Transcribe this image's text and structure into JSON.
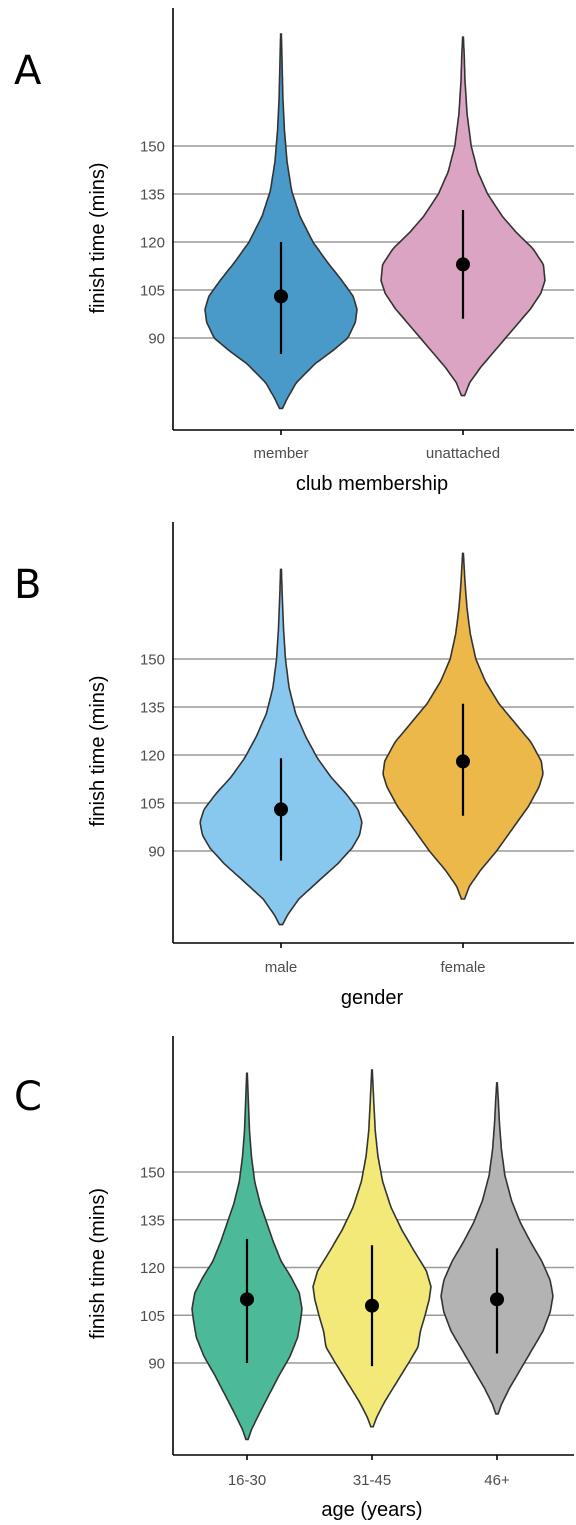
{
  "chart_data": [
    {
      "panel": "A",
      "type": "violin",
      "xlabel": "club membership",
      "ylabel": "finish time (mins)",
      "yticks": [
        90,
        105,
        120,
        135,
        150
      ],
      "ylim": [
        62,
        190
      ],
      "grid": "horizontal",
      "categories": [
        "member",
        "unattached"
      ],
      "colors": [
        "#4a9ac9",
        "#dba4c3"
      ],
      "means": [
        103,
        113
      ],
      "error_bars": [
        [
          85,
          120
        ],
        [
          96,
          130
        ]
      ],
      "ranges": [
        [
          68,
          185
        ],
        [
          72,
          184
        ]
      ],
      "density_widths": [
        [
          [
            68,
            0.02
          ],
          [
            71,
            0.08
          ],
          [
            76,
            0.2
          ],
          [
            82,
            0.45
          ],
          [
            86,
            0.68
          ],
          [
            90,
            0.88
          ],
          [
            95,
            0.98
          ],
          [
            99,
            1
          ],
          [
            103,
            0.95
          ],
          [
            108,
            0.8
          ],
          [
            114,
            0.6
          ],
          [
            120,
            0.42
          ],
          [
            128,
            0.25
          ],
          [
            136,
            0.14
          ],
          [
            145,
            0.08
          ],
          [
            155,
            0.045
          ],
          [
            165,
            0.025
          ],
          [
            175,
            0.015
          ],
          [
            185,
            0.005
          ]
        ],
        [
          [
            72,
            0.02
          ],
          [
            76,
            0.08
          ],
          [
            81,
            0.22
          ],
          [
            87,
            0.42
          ],
          [
            93,
            0.62
          ],
          [
            99,
            0.82
          ],
          [
            104,
            0.95
          ],
          [
            108,
            1
          ],
          [
            113,
            0.98
          ],
          [
            118,
            0.85
          ],
          [
            123,
            0.65
          ],
          [
            128,
            0.48
          ],
          [
            135,
            0.3
          ],
          [
            142,
            0.18
          ],
          [
            150,
            0.1
          ],
          [
            160,
            0.05
          ],
          [
            170,
            0.025
          ],
          [
            178,
            0.015
          ],
          [
            184,
            0.005
          ]
        ]
      ]
    },
    {
      "panel": "B",
      "type": "violin",
      "xlabel": "gender",
      "ylabel": "finish time (mins)",
      "yticks": [
        90,
        105,
        120,
        135,
        150
      ],
      "ylim": [
        62,
        190
      ],
      "grid": "horizontal",
      "categories": [
        "male",
        "female"
      ],
      "colors": [
        "#88c8ee",
        "#ecb84a"
      ],
      "means": [
        103,
        118
      ],
      "error_bars": [
        [
          87,
          119
        ],
        [
          101,
          136
        ]
      ],
      "ranges": [
        [
          67,
          178
        ],
        [
          75,
          183
        ]
      ],
      "density_widths": [
        [
          [
            67,
            0.02
          ],
          [
            70,
            0.08
          ],
          [
            75,
            0.22
          ],
          [
            81,
            0.48
          ],
          [
            86,
            0.7
          ],
          [
            91,
            0.88
          ],
          [
            95,
            0.97
          ],
          [
            99,
            1
          ],
          [
            103,
            0.95
          ],
          [
            108,
            0.8
          ],
          [
            113,
            0.62
          ],
          [
            119,
            0.45
          ],
          [
            126,
            0.3
          ],
          [
            133,
            0.18
          ],
          [
            141,
            0.1
          ],
          [
            150,
            0.055
          ],
          [
            160,
            0.03
          ],
          [
            170,
            0.015
          ],
          [
            178,
            0.005
          ]
        ],
        [
          [
            75,
            0.02
          ],
          [
            79,
            0.08
          ],
          [
            84,
            0.22
          ],
          [
            90,
            0.42
          ],
          [
            97,
            0.62
          ],
          [
            104,
            0.82
          ],
          [
            110,
            0.95
          ],
          [
            114,
            1
          ],
          [
            118,
            0.98
          ],
          [
            124,
            0.85
          ],
          [
            130,
            0.65
          ],
          [
            136,
            0.45
          ],
          [
            143,
            0.28
          ],
          [
            150,
            0.16
          ],
          [
            158,
            0.09
          ],
          [
            166,
            0.05
          ],
          [
            174,
            0.025
          ],
          [
            183,
            0.005
          ]
        ]
      ]
    },
    {
      "panel": "C",
      "type": "violin",
      "xlabel": "age (years)",
      "ylabel": "finish time (mins)",
      "yticks": [
        90,
        105,
        120,
        135,
        150
      ],
      "ylim": [
        62,
        190
      ],
      "grid": "horizontal",
      "categories": [
        "16-30",
        "31-45",
        "46+"
      ],
      "colors": [
        "#4cba98",
        "#f2e978",
        "#b3b3b3"
      ],
      "means": [
        110,
        108,
        110
      ],
      "error_bars": [
        [
          90,
          129
        ],
        [
          89,
          127
        ],
        [
          93,
          126
        ]
      ],
      "ranges": [
        [
          66,
          181
        ],
        [
          70,
          182
        ],
        [
          74,
          178
        ]
      ],
      "density_widths": [
        [
          [
            66,
            0.02
          ],
          [
            69,
            0.08
          ],
          [
            74,
            0.22
          ],
          [
            80,
            0.4
          ],
          [
            86,
            0.58
          ],
          [
            92,
            0.78
          ],
          [
            98,
            0.92
          ],
          [
            103,
            0.97
          ],
          [
            107,
            1
          ],
          [
            112,
            0.95
          ],
          [
            117,
            0.8
          ],
          [
            122,
            0.62
          ],
          [
            128,
            0.48
          ],
          [
            134,
            0.36
          ],
          [
            140,
            0.24
          ],
          [
            147,
            0.14
          ],
          [
            155,
            0.08
          ],
          [
            163,
            0.045
          ],
          [
            172,
            0.025
          ],
          [
            181,
            0.005
          ]
        ],
        [
          [
            70,
            0.02
          ],
          [
            73,
            0.08
          ],
          [
            78,
            0.22
          ],
          [
            84,
            0.42
          ],
          [
            90,
            0.62
          ],
          [
            95,
            0.78
          ],
          [
            100,
            0.82
          ],
          [
            105,
            0.9
          ],
          [
            110,
            0.97
          ],
          [
            114,
            1
          ],
          [
            119,
            0.92
          ],
          [
            125,
            0.72
          ],
          [
            132,
            0.5
          ],
          [
            139,
            0.32
          ],
          [
            147,
            0.18
          ],
          [
            155,
            0.1
          ],
          [
            163,
            0.055
          ],
          [
            172,
            0.03
          ],
          [
            182,
            0.005
          ]
        ]
      ],
      "density_widths_46plus": [
        [
          74,
          0.02
        ],
        [
          77,
          0.08
        ],
        [
          82,
          0.22
        ],
        [
          88,
          0.42
        ],
        [
          94,
          0.62
        ],
        [
          100,
          0.82
        ],
        [
          106,
          0.95
        ],
        [
          111,
          1
        ],
        [
          116,
          0.95
        ],
        [
          122,
          0.8
        ],
        [
          128,
          0.6
        ],
        [
          134,
          0.42
        ],
        [
          141,
          0.26
        ],
        [
          149,
          0.14
        ],
        [
          157,
          0.08
        ],
        [
          165,
          0.045
        ],
        [
          172,
          0.025
        ],
        [
          178,
          0.005
        ]
      ]
    }
  ]
}
